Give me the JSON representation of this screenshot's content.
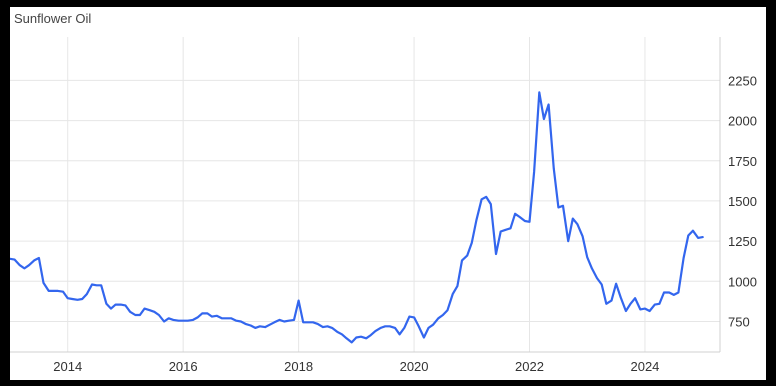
{
  "chart_data": {
    "type": "line",
    "title": "Sunflower Oil",
    "xlabel": "",
    "ylabel": "",
    "xlim": [
      2013.0,
      2025.3
    ],
    "ylim": [
      560,
      2520
    ],
    "y_axis_side": "right",
    "grid": true,
    "legend": "none",
    "x_ticks": [
      2014,
      2016,
      2018,
      2020,
      2022,
      2024
    ],
    "y_ticks": [
      750,
      1000,
      1250,
      1500,
      1750,
      2000,
      2250
    ],
    "series": [
      {
        "color": "#3366ee",
        "points": [
          [
            2013.0,
            1140
          ],
          [
            2013.08,
            1135
          ],
          [
            2013.17,
            1100
          ],
          [
            2013.25,
            1080
          ],
          [
            2013.33,
            1100
          ],
          [
            2013.42,
            1130
          ],
          [
            2013.5,
            1145
          ],
          [
            2013.58,
            990
          ],
          [
            2013.67,
            940
          ],
          [
            2013.75,
            940
          ],
          [
            2013.83,
            940
          ],
          [
            2013.92,
            935
          ],
          [
            2014.0,
            895
          ],
          [
            2014.08,
            890
          ],
          [
            2014.17,
            885
          ],
          [
            2014.25,
            890
          ],
          [
            2014.33,
            920
          ],
          [
            2014.42,
            980
          ],
          [
            2014.5,
            975
          ],
          [
            2014.58,
            975
          ],
          [
            2014.67,
            860
          ],
          [
            2014.75,
            830
          ],
          [
            2014.83,
            855
          ],
          [
            2014.92,
            855
          ],
          [
            2015.0,
            850
          ],
          [
            2015.08,
            810
          ],
          [
            2015.17,
            790
          ],
          [
            2015.25,
            790
          ],
          [
            2015.33,
            830
          ],
          [
            2015.42,
            820
          ],
          [
            2015.5,
            810
          ],
          [
            2015.58,
            790
          ],
          [
            2015.67,
            750
          ],
          [
            2015.75,
            770
          ],
          [
            2015.83,
            760
          ],
          [
            2015.92,
            755
          ],
          [
            2016.0,
            755
          ],
          [
            2016.08,
            755
          ],
          [
            2016.17,
            760
          ],
          [
            2016.25,
            775
          ],
          [
            2016.33,
            800
          ],
          [
            2016.42,
            800
          ],
          [
            2016.5,
            780
          ],
          [
            2016.58,
            785
          ],
          [
            2016.67,
            770
          ],
          [
            2016.75,
            770
          ],
          [
            2016.83,
            770
          ],
          [
            2016.92,
            755
          ],
          [
            2017.0,
            750
          ],
          [
            2017.08,
            735
          ],
          [
            2017.17,
            725
          ],
          [
            2017.25,
            710
          ],
          [
            2017.33,
            720
          ],
          [
            2017.42,
            715
          ],
          [
            2017.5,
            730
          ],
          [
            2017.58,
            745
          ],
          [
            2017.67,
            760
          ],
          [
            2017.75,
            750
          ],
          [
            2017.83,
            755
          ],
          [
            2017.92,
            760
          ],
          [
            2018.0,
            880
          ],
          [
            2018.08,
            745
          ],
          [
            2018.17,
            745
          ],
          [
            2018.25,
            745
          ],
          [
            2018.33,
            735
          ],
          [
            2018.42,
            715
          ],
          [
            2018.5,
            720
          ],
          [
            2018.58,
            710
          ],
          [
            2018.67,
            685
          ],
          [
            2018.75,
            670
          ],
          [
            2018.83,
            645
          ],
          [
            2018.92,
            620
          ],
          [
            2019.0,
            650
          ],
          [
            2019.08,
            655
          ],
          [
            2019.17,
            645
          ],
          [
            2019.25,
            665
          ],
          [
            2019.33,
            690
          ],
          [
            2019.42,
            710
          ],
          [
            2019.5,
            720
          ],
          [
            2019.58,
            720
          ],
          [
            2019.67,
            710
          ],
          [
            2019.75,
            670
          ],
          [
            2019.83,
            710
          ],
          [
            2019.92,
            780
          ],
          [
            2020.0,
            775
          ],
          [
            2020.08,
            720
          ],
          [
            2020.17,
            650
          ],
          [
            2020.25,
            710
          ],
          [
            2020.33,
            730
          ],
          [
            2020.42,
            770
          ],
          [
            2020.5,
            790
          ],
          [
            2020.58,
            820
          ],
          [
            2020.67,
            920
          ],
          [
            2020.75,
            970
          ],
          [
            2020.83,
            1130
          ],
          [
            2020.92,
            1160
          ],
          [
            2021.0,
            1240
          ],
          [
            2021.08,
            1380
          ],
          [
            2021.17,
            1510
          ],
          [
            2021.25,
            1525
          ],
          [
            2021.33,
            1480
          ],
          [
            2021.42,
            1170
          ],
          [
            2021.5,
            1310
          ],
          [
            2021.58,
            1320
          ],
          [
            2021.67,
            1330
          ],
          [
            2021.75,
            1420
          ],
          [
            2021.83,
            1400
          ],
          [
            2021.92,
            1375
          ],
          [
            2022.0,
            1370
          ],
          [
            2022.08,
            1680
          ],
          [
            2022.17,
            2175
          ],
          [
            2022.25,
            2010
          ],
          [
            2022.33,
            2100
          ],
          [
            2022.42,
            1700
          ],
          [
            2022.5,
            1460
          ],
          [
            2022.58,
            1470
          ],
          [
            2022.67,
            1250
          ],
          [
            2022.75,
            1390
          ],
          [
            2022.83,
            1355
          ],
          [
            2022.92,
            1280
          ],
          [
            2023.0,
            1150
          ],
          [
            2023.08,
            1080
          ],
          [
            2023.17,
            1020
          ],
          [
            2023.25,
            980
          ],
          [
            2023.33,
            860
          ],
          [
            2023.42,
            880
          ],
          [
            2023.5,
            985
          ],
          [
            2023.58,
            900
          ],
          [
            2023.67,
            815
          ],
          [
            2023.75,
            860
          ],
          [
            2023.83,
            895
          ],
          [
            2023.92,
            825
          ],
          [
            2024.0,
            830
          ],
          [
            2024.08,
            815
          ],
          [
            2024.17,
            855
          ],
          [
            2024.25,
            860
          ],
          [
            2024.33,
            930
          ],
          [
            2024.42,
            930
          ],
          [
            2024.5,
            915
          ],
          [
            2024.58,
            930
          ],
          [
            2024.67,
            1145
          ],
          [
            2024.75,
            1285
          ],
          [
            2024.83,
            1315
          ],
          [
            2024.92,
            1270
          ],
          [
            2025.0,
            1275
          ]
        ]
      }
    ]
  }
}
